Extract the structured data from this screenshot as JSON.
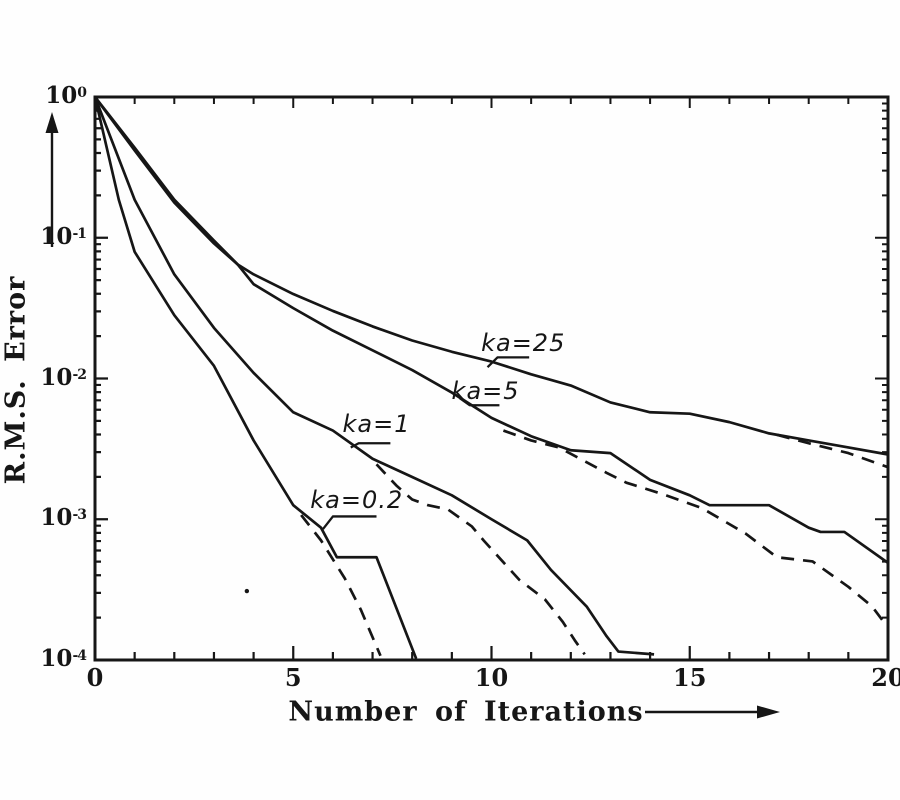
{
  "figure": {
    "kind": "scanned line chart",
    "background": "#fefefe",
    "ink_color": "#161616"
  },
  "chart_data": {
    "type": "line",
    "title": "",
    "xlabel": "Number of Iterations",
    "ylabel": "R.M.S. Error",
    "x_axis": {
      "min": 0,
      "max": 20,
      "major_ticks": [
        0,
        5,
        10,
        15,
        20
      ],
      "minor_tick_step": 1
    },
    "y_axis": {
      "scale": "log10",
      "base_label": "10",
      "major_tick_exponents": [
        0,
        -1,
        -2,
        -3,
        -4
      ],
      "minor_log_ticks": true
    },
    "grid": false,
    "legend": "none (curves labeled inline)",
    "note_on_points": "each point is [iteration, log10(rms_error)]",
    "series": [
      {
        "name": "ka=25 solid",
        "group": "ka=25",
        "style": "solid",
        "points": [
          [
            0,
            0
          ],
          [
            1,
            -0.38
          ],
          [
            2,
            -0.75
          ],
          [
            3,
            -1.04
          ],
          [
            3.6,
            -1.19
          ],
          [
            4,
            -1.26
          ],
          [
            5,
            -1.4
          ],
          [
            6,
            -1.52
          ],
          [
            7,
            -1.63
          ],
          [
            8,
            -1.73
          ],
          [
            9,
            -1.81
          ],
          [
            10,
            -1.88
          ],
          [
            11,
            -1.97
          ],
          [
            12,
            -2.05
          ],
          [
            13,
            -2.17
          ],
          [
            14,
            -2.24
          ],
          [
            15,
            -2.25
          ],
          [
            16,
            -2.31
          ],
          [
            17,
            -2.39
          ],
          [
            18,
            -2.44
          ],
          [
            19,
            -2.49
          ],
          [
            20,
            -2.54
          ]
        ]
      },
      {
        "name": "ka=25 dashed",
        "group": "ka=25",
        "style": "dashed",
        "points": [
          [
            17.2,
            -2.4
          ],
          [
            18,
            -2.46
          ],
          [
            19,
            -2.53
          ],
          [
            20,
            -2.63
          ]
        ]
      },
      {
        "name": "ka=5 solid",
        "group": "ka=5",
        "style": "solid",
        "points": [
          [
            0,
            0
          ],
          [
            1,
            -0.36
          ],
          [
            2,
            -0.73
          ],
          [
            3,
            -1.02
          ],
          [
            3.6,
            -1.19
          ],
          [
            4,
            -1.33
          ],
          [
            5,
            -1.5
          ],
          [
            6,
            -1.66
          ],
          [
            7,
            -1.8
          ],
          [
            8,
            -1.94
          ],
          [
            9,
            -2.1
          ],
          [
            10,
            -2.28
          ],
          [
            11,
            -2.41
          ],
          [
            12,
            -2.51
          ],
          [
            13,
            -2.53
          ],
          [
            14,
            -2.72
          ],
          [
            15,
            -2.83
          ],
          [
            15.5,
            -2.9
          ],
          [
            17,
            -2.9
          ],
          [
            18,
            -3.06
          ],
          [
            18.3,
            -3.09
          ],
          [
            18.9,
            -3.09
          ],
          [
            20,
            -3.31
          ]
        ]
      },
      {
        "name": "ka=5 dashed",
        "group": "ka=5",
        "style": "dashed",
        "points": [
          [
            10.3,
            -2.37
          ],
          [
            11,
            -2.44
          ],
          [
            11.7,
            -2.49
          ],
          [
            12.3,
            -2.58
          ],
          [
            12.9,
            -2.67
          ],
          [
            13.4,
            -2.74
          ],
          [
            14.3,
            -2.82
          ],
          [
            15.3,
            -2.92
          ],
          [
            16.4,
            -3.1
          ],
          [
            17.2,
            -3.27
          ],
          [
            18.1,
            -3.3
          ],
          [
            19,
            -3.48
          ],
          [
            19.6,
            -3.62
          ],
          [
            20,
            -3.77
          ]
        ]
      },
      {
        "name": "ka=1 solid",
        "group": "ka=1",
        "style": "solid",
        "points": [
          [
            0,
            0
          ],
          [
            1,
            -0.73
          ],
          [
            2,
            -1.26
          ],
          [
            3,
            -1.64
          ],
          [
            4,
            -1.96
          ],
          [
            5,
            -2.24
          ],
          [
            6,
            -2.37
          ],
          [
            7,
            -2.57
          ],
          [
            8,
            -2.7
          ],
          [
            9,
            -2.83
          ],
          [
            10,
            -3.0
          ],
          [
            10.9,
            -3.15
          ],
          [
            11.5,
            -3.36
          ],
          [
            12.4,
            -3.62
          ],
          [
            12.9,
            -3.83
          ],
          [
            13.2,
            -3.94
          ],
          [
            14.1,
            -3.96
          ]
        ]
      },
      {
        "name": "ka=1 dashed",
        "group": "ka=1",
        "style": "dashed",
        "points": [
          [
            7.1,
            -2.61
          ],
          [
            7.6,
            -2.76
          ],
          [
            8,
            -2.86
          ],
          [
            8.4,
            -2.9
          ],
          [
            8.9,
            -2.93
          ],
          [
            9.5,
            -3.05
          ],
          [
            9.8,
            -3.15
          ],
          [
            10.7,
            -3.43
          ],
          [
            11.35,
            -3.57
          ],
          [
            11.8,
            -3.73
          ],
          [
            12.1,
            -3.86
          ],
          [
            12.35,
            -3.96
          ]
        ]
      },
      {
        "name": "ka=0.2 solid",
        "group": "ka=0.2",
        "style": "solid",
        "points": [
          [
            0,
            0
          ],
          [
            0.6,
            -0.73
          ],
          [
            1,
            -1.1
          ],
          [
            2,
            -1.55
          ],
          [
            3,
            -1.91
          ],
          [
            4,
            -2.44
          ],
          [
            5,
            -2.9
          ],
          [
            5.7,
            -3.06
          ],
          [
            6.1,
            -3.27
          ],
          [
            7.1,
            -3.27
          ],
          [
            8.1,
            -3.99
          ]
        ]
      },
      {
        "name": "ka=0.2 dashed",
        "group": "ka=0.2",
        "style": "dashed",
        "points": [
          [
            5.2,
            -2.97
          ],
          [
            5.7,
            -3.15
          ],
          [
            6.3,
            -3.42
          ],
          [
            6.7,
            -3.64
          ],
          [
            7.2,
            -3.97
          ]
        ]
      }
    ],
    "annotations": [
      {
        "text": "ka=25",
        "x": 10.8,
        "log_y": -1.75,
        "leader": [
          [
            10.95,
            -1.85
          ],
          [
            10.15,
            -1.85
          ],
          [
            9.9,
            -1.92
          ]
        ]
      },
      {
        "text": "ka=5",
        "x": 9.85,
        "log_y": -2.09,
        "leader": [
          [
            10.2,
            -2.19
          ],
          [
            9.45,
            -2.19
          ],
          [
            9.2,
            -2.14
          ]
        ]
      },
      {
        "text": "ka=1",
        "x": 7.1,
        "log_y": -2.32,
        "leader": [
          [
            7.45,
            -2.46
          ],
          [
            6.65,
            -2.46
          ],
          [
            6.45,
            -2.49
          ]
        ]
      },
      {
        "text": "ka=0.2",
        "x": 6.6,
        "log_y": -2.86,
        "leader": [
          [
            7.1,
            -2.98
          ],
          [
            6.0,
            -2.98
          ],
          [
            5.75,
            -3.07
          ]
        ]
      }
    ],
    "axis_direction_arrows": [
      {
        "name": "y-axis-arrow",
        "direction": "up"
      },
      {
        "name": "x-axis-arrow",
        "direction": "right"
      }
    ],
    "artifact_dot": {
      "x": 3.83,
      "log_y": -3.51
    }
  }
}
